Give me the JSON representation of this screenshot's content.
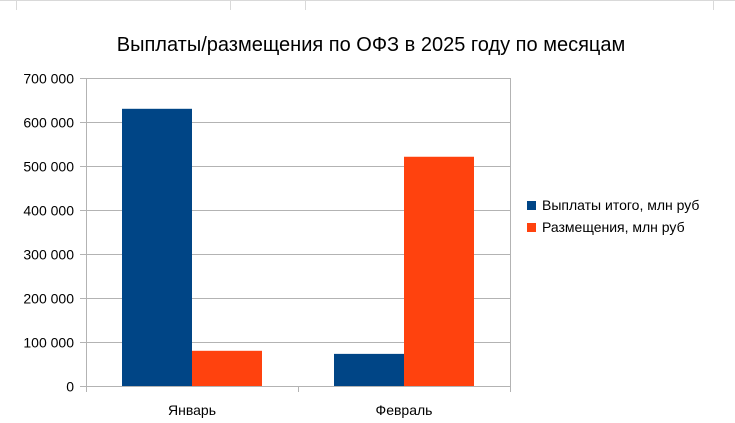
{
  "chart_data": {
    "type": "bar",
    "title": "Выплаты/размещения по ОФЗ в 2025 году по месяцам",
    "xlabel": "",
    "ylabel": "",
    "categories": [
      "Январь",
      "Февраль"
    ],
    "series": [
      {
        "name": "Выплаты итого, млн руб",
        "values": [
          630000,
          73000
        ],
        "color": "#004586"
      },
      {
        "name": "Размещения, млн руб",
        "values": [
          80000,
          521000
        ],
        "color": "#ff420e"
      }
    ],
    "ylim": [
      0,
      700000
    ],
    "yticks": [
      0,
      100000,
      200000,
      300000,
      400000,
      500000,
      600000,
      700000
    ],
    "ytick_labels": [
      "0",
      "100 000",
      "200 000",
      "300 000",
      "400 000",
      "500 000",
      "600 000",
      "700 000"
    ],
    "grid": true,
    "legend_position": "right"
  }
}
